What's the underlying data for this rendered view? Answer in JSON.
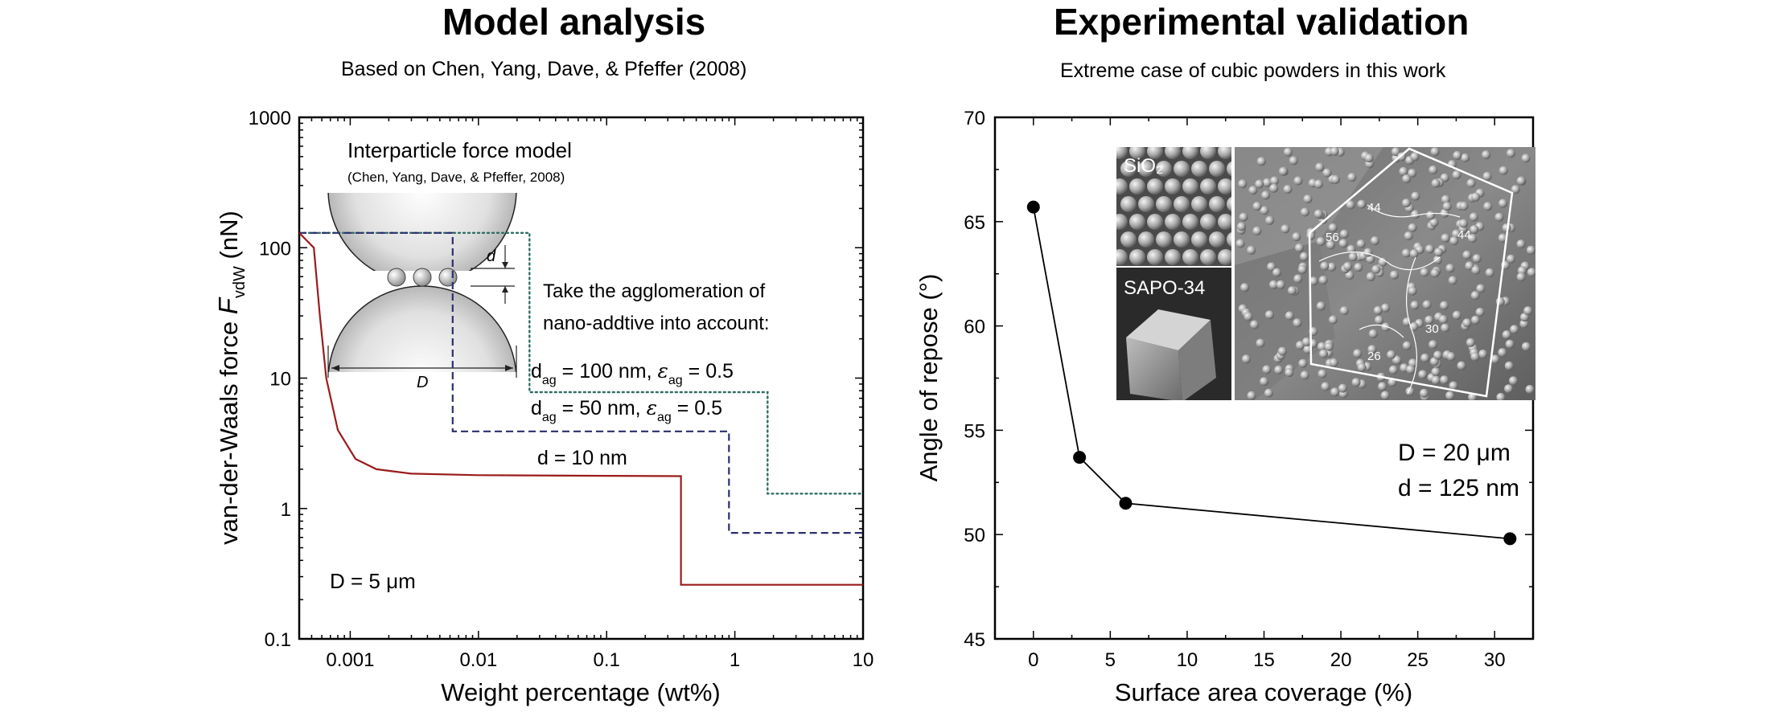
{
  "figures": {
    "left": {
      "title": "Model analysis",
      "subtitle": "Based on  Chen, Yang, Dave, & Pfeffer (2008)"
    },
    "right": {
      "title": "Experimental validation",
      "subtitle": "Extreme case of cubic powders in this work"
    }
  },
  "colors": {
    "d10": "#9b1b1b",
    "dag50": "#2b2f6e",
    "dag100": "#2f6e63",
    "series_right": "#000000"
  },
  "chart_data": [
    {
      "type": "line",
      "xlabel": "Weight percentage (wt%)",
      "ylabel": {
        "main": "van-der-Waals force ",
        "symbol": "F",
        "sub": "vdW",
        "unit": "  (nN)"
      },
      "xscale": "log",
      "yscale": "log",
      "xlim": [
        0.0004,
        10
      ],
      "ylim": [
        0.1,
        1000
      ],
      "xticks": [
        0.001,
        0.01,
        0.1,
        1,
        10
      ],
      "xtick_labels": [
        "0.001",
        "0.01",
        "0.1",
        "1",
        "10"
      ],
      "yticks": [
        0.1,
        1,
        10,
        100,
        1000
      ],
      "ytick_labels": [
        "0.1",
        "1",
        "10",
        "100",
        "1000"
      ],
      "series": [
        {
          "key": "d10",
          "label": "d = 10 nm",
          "style": "solid",
          "points": [
            [
              0.0004,
              130
            ],
            [
              0.00052,
              100
            ],
            [
              0.00058,
              30
            ],
            [
              0.00065,
              10
            ],
            [
              0.0008,
              4
            ],
            [
              0.0011,
              2.4
            ],
            [
              0.0016,
              2.0
            ],
            [
              0.003,
              1.85
            ],
            [
              0.01,
              1.8
            ],
            [
              0.1,
              1.78
            ],
            [
              0.38,
              1.77
            ],
            [
              0.38,
              0.26
            ],
            [
              10,
              0.26
            ]
          ]
        },
        {
          "key": "dag50",
          "label": {
            "a": "d",
            "a_sub": "ag",
            "b": " = 50 nm, ",
            "c": "ε",
            "c_sub": "ag",
            "d": " = 0.5"
          },
          "style": "dash",
          "points": [
            [
              0.0004,
              130
            ],
            [
              0.0063,
              130
            ],
            [
              0.0063,
              3.9
            ],
            [
              0.9,
              3.9
            ],
            [
              0.9,
              0.65
            ],
            [
              10,
              0.65
            ]
          ]
        },
        {
          "key": "dag100",
          "label": {
            "a": "d",
            "a_sub": "ag",
            "b": " = 100 nm, ",
            "c": "ε",
            "c_sub": "ag",
            "d": " = 0.5"
          },
          "style": "dot",
          "points": [
            [
              0.0004,
              130
            ],
            [
              0.025,
              130
            ],
            [
              0.025,
              7.8
            ],
            [
              1.8,
              7.8
            ],
            [
              1.8,
              1.3
            ],
            [
              10,
              1.3
            ]
          ]
        }
      ],
      "annotations": {
        "note": "D = 5 μm",
        "agglom_line1": "Take the agglomeration of",
        "agglom_line2": "nano-addtive into account:",
        "inset_title": "Interparticle force model",
        "inset_citation": "(Chen, Yang, Dave, & Pfeffer, 2008)",
        "inset_d": "d",
        "inset_D": "D"
      }
    },
    {
      "type": "line",
      "xlabel": "Surface area coverage (%)",
      "ylabel": "Angle of repose (°)",
      "xlim": [
        -2.5,
        32.5
      ],
      "ylim": [
        45,
        70
      ],
      "xticks": [
        0,
        5,
        10,
        15,
        20,
        25,
        30
      ],
      "yticks": [
        45,
        50,
        55,
        60,
        65,
        70
      ],
      "x": [
        0,
        3,
        6,
        31
      ],
      "y": [
        65.7,
        53.7,
        51.5,
        49.8
      ],
      "annotations": {
        "line1": "D = 20 μm",
        "line2": "d = 125 nm",
        "inset_sio2": "SiO₂",
        "inset_sapo": "SAPO-34",
        "inset_nums": [
          "44",
          "56",
          "44",
          "30",
          "26"
        ]
      }
    }
  ]
}
